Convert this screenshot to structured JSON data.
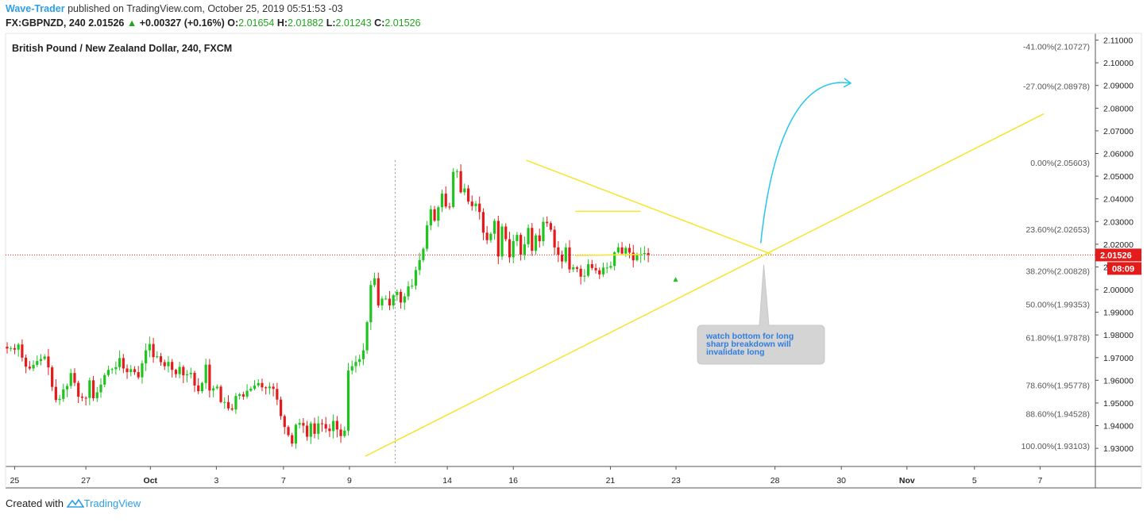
{
  "header": {
    "author": "Wave-Trader",
    "published": "published on TradingView.com, October 25, 2019 05:51:53 -03",
    "symbol": "FX:GBPNZD, 240",
    "last": "2.01526",
    "change": "+0.00327 (+0.16%)",
    "o_label": "O:",
    "o": "2.01654",
    "h_label": "H:",
    "h": "2.01882",
    "l_label": "L:",
    "l": "2.01243",
    "c_label": "C:",
    "c": "2.01526"
  },
  "footer": {
    "created_with": "Created with",
    "brand": "TradingView"
  },
  "chart_data": {
    "type": "candlestick",
    "title": "British Pound / New Zealand Dollar, 240, FXCM",
    "ylim": [
      1.922,
      2.113
    ],
    "y_ticks": [
      "2.11000",
      "2.10000",
      "2.09000",
      "2.08000",
      "2.07000",
      "2.06000",
      "2.05000",
      "2.04000",
      "2.03000",
      "2.02000",
      "2.01000",
      "2.00000",
      "1.99000",
      "1.98000",
      "1.97000",
      "1.96000",
      "1.95000",
      "1.94000",
      "1.93000"
    ],
    "x_ticks": [
      "25",
      "27",
      "Oct",
      "3",
      "7",
      "9",
      "14",
      "16",
      "21",
      "23",
      "28",
      "30",
      "Nov",
      "5",
      "7"
    ],
    "x_tick_bar_index": [
      2.0,
      21.0,
      38.2,
      55.8,
      73.7,
      91.3,
      117.4,
      135.0,
      160.9,
      178.4,
      204.8,
      222.5,
      240.0,
      258.0,
      275.5
    ],
    "last_price": {
      "value": 2.01526,
      "label": "2.01526",
      "countdown": "08:09",
      "color": "#e31b1b"
    },
    "fib_levels": [
      {
        "label": "-41.00%(2.10727)",
        "value": 2.10727
      },
      {
        "label": "-27.00%(2.08978)",
        "value": 2.08978
      },
      {
        "label": "0.00%(2.05603)",
        "value": 2.05603
      },
      {
        "label": "23.60%(2.02653)",
        "value": 2.02653
      },
      {
        "label": "38.20%(2.00828)",
        "value": 2.00828
      },
      {
        "label": "50.00%(1.99353)",
        "value": 1.99353
      },
      {
        "label": "61.80%(1.97878)",
        "value": 1.97878
      },
      {
        "label": "78.60%(1.95778)",
        "value": 1.95778
      },
      {
        "label": "88.60%(1.94528)",
        "value": 1.94528
      },
      {
        "label": "100.00%(1.93103)",
        "value": 1.93103
      }
    ],
    "closes": [
      1.974,
      1.9742,
      1.9735,
      1.9758,
      1.97,
      1.966,
      1.9652,
      1.9668,
      1.9685,
      1.9694,
      1.9705,
      1.9657,
      1.9571,
      1.9513,
      1.9518,
      1.956,
      1.9575,
      1.9632,
      1.9589,
      1.9528,
      1.9523,
      1.9522,
      1.96,
      1.9521,
      1.9547,
      1.9581,
      1.9623,
      1.9646,
      1.9649,
      1.9658,
      1.9698,
      1.9652,
      1.9636,
      1.9649,
      1.9636,
      1.9613,
      1.9675,
      1.9732,
      1.976,
      1.9702,
      1.9706,
      1.968,
      1.9662,
      1.9681,
      1.9646,
      1.9627,
      1.9659,
      1.9622,
      1.9627,
      1.9633,
      1.9577,
      1.9552,
      1.9588,
      1.9669,
      1.9555,
      1.9565,
      1.9572,
      1.9504,
      1.9504,
      1.9476,
      1.9471,
      1.9531,
      1.9538,
      1.9528,
      1.9554,
      1.9563,
      1.9577,
      1.9588,
      1.9569,
      1.9565,
      1.9572,
      1.9562,
      1.9515,
      1.9442,
      1.9394,
      1.9358,
      1.9321,
      1.9404,
      1.9412,
      1.94,
      1.9351,
      1.941,
      1.9364,
      1.941,
      1.9407,
      1.9387,
      1.9376,
      1.9421,
      1.9383,
      1.9354,
      1.9378,
      1.9643,
      1.9662,
      1.9681,
      1.9693,
      1.9732,
      1.9856,
      2.002,
      2.005,
      1.993,
      1.996,
      1.996,
      1.993,
      1.9975,
      1.999,
      1.9943,
      1.997,
      2.0014,
      2.0017,
      2.0086,
      2.013,
      2.018,
      2.0283,
      2.0354,
      2.0304,
      2.0363,
      2.0423,
      2.0366,
      2.0364,
      2.0519,
      2.0522,
      2.0429,
      2.0446,
      2.0388,
      2.0368,
      2.0379,
      2.0342,
      2.0251,
      2.0218,
      2.0246,
      2.0303,
      2.0146,
      2.0278,
      2.0222,
      2.0142,
      2.0214,
      2.0241,
      2.0154,
      2.02,
      2.0272,
      2.0171,
      2.0239,
      2.0213,
      2.0299,
      2.0293,
      2.0264,
      2.0186,
      2.0154,
      2.0124,
      2.0186,
      2.0089,
      2.0098,
      2.0092,
      2.0057,
      2.0061,
      2.0112,
      2.0095,
      2.0085,
      2.0067,
      2.0097,
      2.0097,
      2.0104,
      2.0164,
      2.0186,
      2.0159,
      2.0184,
      2.0163,
      2.0129,
      2.0153,
      2.0156,
      2.0161,
      2.0153
    ],
    "annotations": [
      {
        "type": "callout",
        "lines": [
          "watch bottom for long",
          "sharp breakdown will",
          "invalidate long"
        ]
      },
      {
        "type": "trendline",
        "description": "rising support"
      },
      {
        "type": "trendline",
        "description": "falling resistance"
      },
      {
        "type": "rectangle",
        "description": "consolidation channel"
      },
      {
        "type": "arrow",
        "description": "projected move",
        "color": "#28c5f0"
      }
    ],
    "colors": {
      "up": "#1fc41f",
      "down": "#e31b1b",
      "trendline": "#f5e52c",
      "arrow": "#28c5f0",
      "callout_text": "#2e7de3"
    }
  }
}
